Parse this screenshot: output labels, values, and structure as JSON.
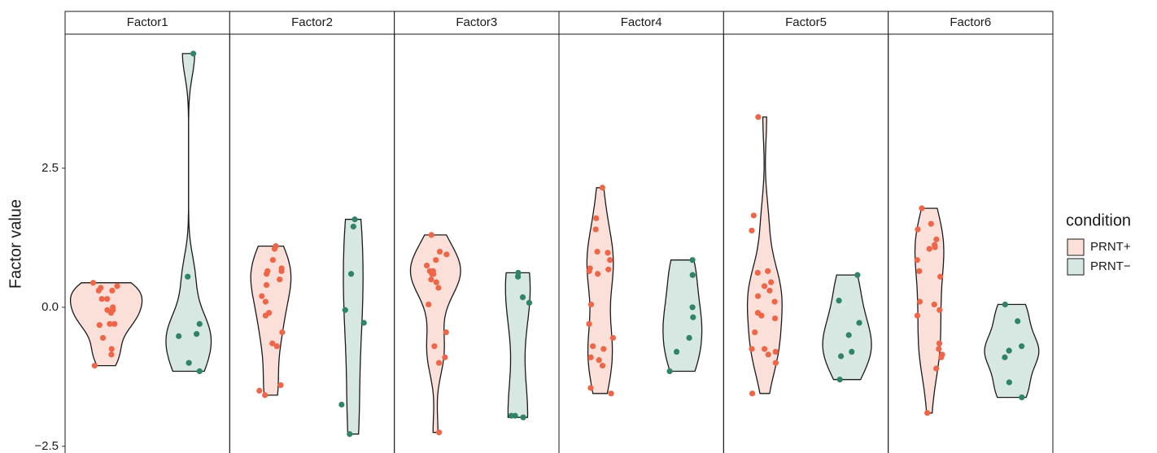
{
  "chart_data": {
    "type": "violin",
    "ylabel": "Factor value",
    "legend_title": "condition",
    "legend_position": "right",
    "ylim": [
      -2.62,
      4.91
    ],
    "yticks": [
      {
        "value": -2.5,
        "label": "−2.5"
      },
      {
        "value": 0,
        "label": "0.0"
      },
      {
        "value": 2.5,
        "label": "2.5"
      }
    ],
    "grid": false,
    "series": [
      {
        "name": "PRNT+",
        "color": "#ef6548",
        "fill": "#fbe0da"
      },
      {
        "name": "PRNT−",
        "color": "#2f8466",
        "fill": "#d7e7e1"
      }
    ],
    "facets": [
      {
        "title": "Factor1",
        "values": [
          [
            0.44,
            0.38,
            0.35,
            0.3,
            0.3,
            0.15,
            0.15,
            0.0,
            -0.05,
            -0.05,
            -0.1,
            -0.3,
            -0.3,
            -0.32,
            -0.55,
            -0.75,
            -0.85,
            -1.05
          ],
          [
            4.56,
            0.55,
            -0.3,
            -0.48,
            -0.52,
            -1.0,
            -1.15
          ]
        ]
      },
      {
        "title": "Factor2",
        "values": [
          [
            1.1,
            1.05,
            0.85,
            0.7,
            0.65,
            0.65,
            0.6,
            0.5,
            0.4,
            0.2,
            0.1,
            -0.1,
            -0.15,
            -0.45,
            -0.65,
            -0.7,
            -1.4,
            -1.5,
            -1.58
          ],
          [
            1.58,
            1.45,
            0.6,
            -0.05,
            -0.28,
            -1.75,
            -2.28
          ]
        ]
      },
      {
        "title": "Factor3",
        "values": [
          [
            1.3,
            1.0,
            0.95,
            0.85,
            0.75,
            0.65,
            0.65,
            0.6,
            0.6,
            0.5,
            0.45,
            0.35,
            0.05,
            -0.45,
            -0.7,
            -0.9,
            -1.0,
            -2.25
          ],
          [
            0.62,
            0.55,
            0.18,
            0.08,
            -1.95,
            -1.98,
            -1.95
          ]
        ]
      },
      {
        "title": "Factor4",
        "values": [
          [
            2.15,
            1.6,
            1.4,
            1.0,
            0.98,
            0.85,
            0.7,
            0.68,
            0.65,
            0.6,
            0.05,
            -0.3,
            -0.55,
            -0.7,
            -0.75,
            -0.9,
            -0.95,
            -1.05,
            -1.45,
            -1.55
          ],
          [
            0.85,
            0.58,
            0.0,
            -0.18,
            -0.55,
            -0.8,
            -1.15
          ]
        ]
      },
      {
        "title": "Factor5",
        "values": [
          [
            3.42,
            1.65,
            1.38,
            0.65,
            0.62,
            0.45,
            0.38,
            0.3,
            0.2,
            0.1,
            -0.1,
            -0.15,
            -0.2,
            -0.45,
            -0.75,
            -0.75,
            -0.8,
            -0.85,
            -1.0,
            -1.55
          ],
          [
            0.58,
            0.12,
            -0.28,
            -0.5,
            -0.8,
            -0.88,
            -1.3
          ]
        ]
      },
      {
        "title": "Factor6",
        "values": [
          [
            1.78,
            1.5,
            1.4,
            1.22,
            1.12,
            1.08,
            1.05,
            0.85,
            0.65,
            0.55,
            0.1,
            0.05,
            -0.05,
            -0.15,
            -0.65,
            -0.75,
            -0.85,
            -0.9,
            -1.1,
            -1.9
          ],
          [
            0.05,
            -0.25,
            -0.7,
            -0.78,
            -0.9,
            -1.35,
            -1.62
          ]
        ]
      }
    ]
  }
}
